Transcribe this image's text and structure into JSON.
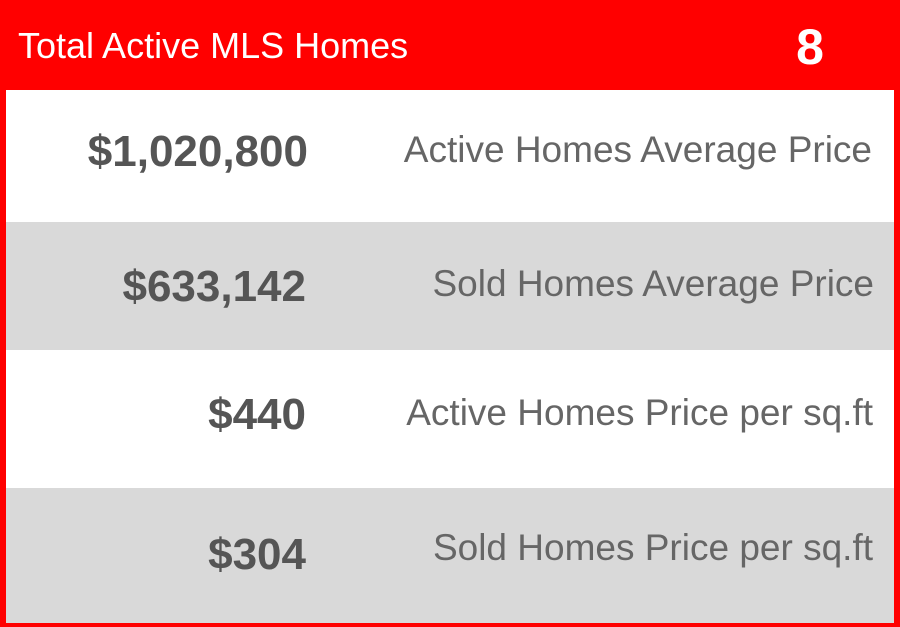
{
  "header": {
    "title": "Total Active MLS Homes",
    "count": "8"
  },
  "stats": [
    {
      "value": "$1,020,800",
      "label": "Active Homes Average Price"
    },
    {
      "value": "$633,142",
      "label": "Sold Homes Average Price"
    },
    {
      "value": "$440",
      "label": "Active Homes Price per sq.ft"
    },
    {
      "value": "$304",
      "label": "Sold Homes Price per sq.ft"
    }
  ],
  "colors": {
    "accent": "#ff0000",
    "row_alt": "#d9d9d9",
    "value_text": "#555555",
    "label_text": "#666666"
  }
}
